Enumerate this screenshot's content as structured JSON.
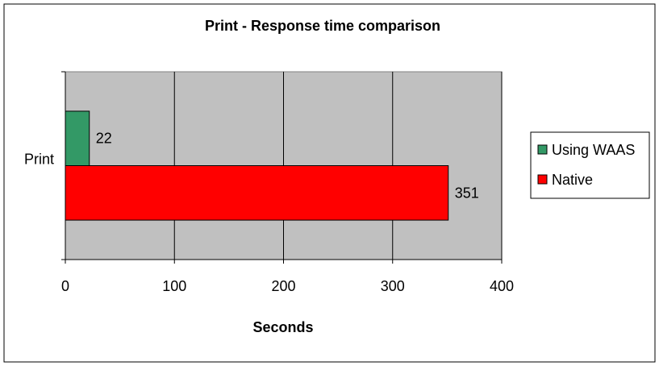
{
  "chart_data": {
    "type": "bar",
    "orientation": "horizontal",
    "title": "Print - Response time comparison",
    "xlabel": "Seconds",
    "ylabel": "",
    "categories": [
      "Print"
    ],
    "xlim": [
      0,
      400
    ],
    "xticks": [
      0,
      100,
      200,
      300,
      400
    ],
    "grid": true,
    "legend_position": "right",
    "series": [
      {
        "name": "Using WAAS",
        "values": [
          22
        ],
        "color": "#339966"
      },
      {
        "name": "Native",
        "values": [
          351
        ],
        "color": "#ff0000"
      }
    ],
    "data_labels": true,
    "colors": {
      "plot_background": "#c0c0c0",
      "gridline": "#000000"
    }
  }
}
